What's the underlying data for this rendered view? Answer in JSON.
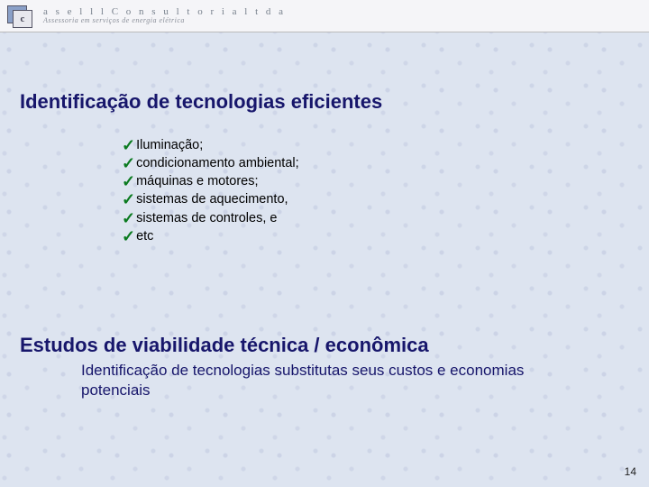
{
  "header": {
    "logo_letter": "c",
    "company_name": "a s e l l l   C o n s u l t o r i a   l t d a",
    "company_sub": "Assessoria em serviços de energia elétrica"
  },
  "heading_1": "Identificação de tecnologias eficientes",
  "bullets": [
    "Iluminação;",
    "condicionamento ambiental;",
    "máquinas e motores;",
    "sistemas de aquecimento,",
    "sistemas de controles, e",
    "etc"
  ],
  "heading_2": "Estudos de viabilidade técnica / econômica",
  "subtext": "Identificação de tecnologias substitutas seus custos e economias potenciais",
  "page_number": "14",
  "colors": {
    "heading": "#17166b",
    "check": "#0a7a1f",
    "bg": "#dde4f0"
  }
}
